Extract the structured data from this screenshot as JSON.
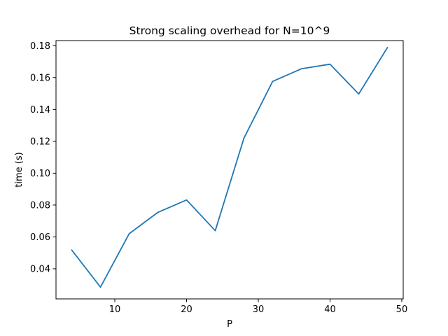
{
  "chart_data": {
    "type": "line",
    "title": "Strong scaling overhead for N=10^9",
    "xlabel": "P",
    "ylabel": "time (s)",
    "xlim": [
      1.8,
      50.2
    ],
    "ylim": [
      0.0211,
      0.1832
    ],
    "xticks": [
      10,
      20,
      30,
      40,
      50
    ],
    "xtick_labels": [
      "10",
      "20",
      "30",
      "40",
      "50"
    ],
    "yticks": [
      0.04,
      0.06,
      0.08,
      0.1,
      0.12,
      0.14,
      0.16,
      0.18
    ],
    "ytick_labels": [
      "0.04",
      "0.06",
      "0.08",
      "0.10",
      "0.12",
      "0.14",
      "0.16",
      "0.18"
    ],
    "grid": false,
    "series": [
      {
        "color": "#1f77b4",
        "x": [
          4,
          8,
          12,
          16,
          20,
          24,
          28,
          32,
          36,
          40,
          44,
          48
        ],
        "y": [
          0.0517,
          0.0285,
          0.062,
          0.0754,
          0.0832,
          0.0639,
          0.122,
          0.1576,
          0.1655,
          0.1684,
          0.1497,
          0.1788
        ]
      }
    ]
  }
}
